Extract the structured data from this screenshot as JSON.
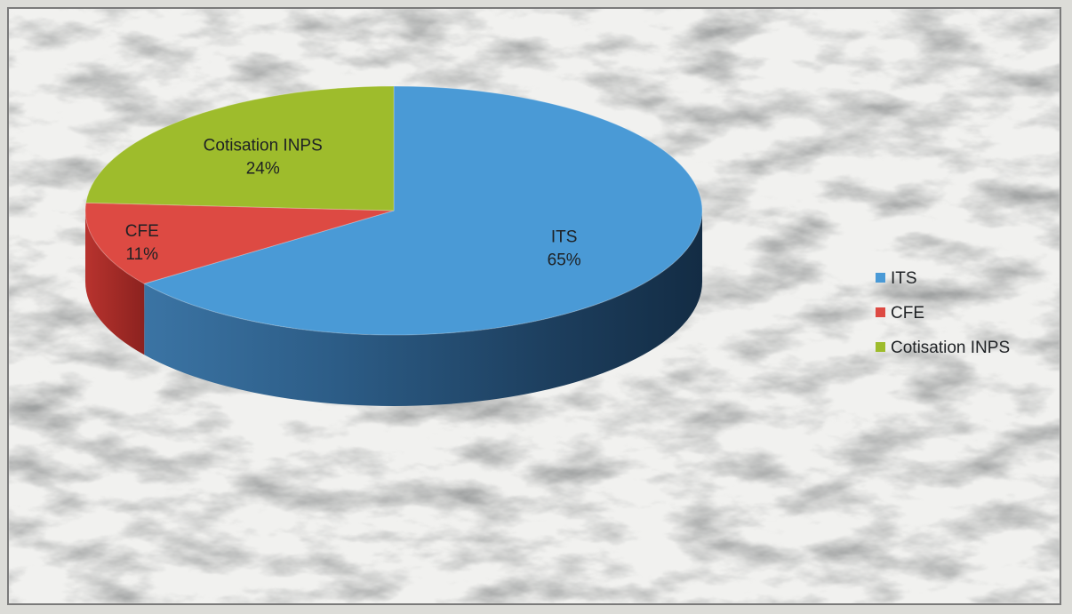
{
  "chart_data": {
    "type": "pie",
    "style": "3d",
    "title": "",
    "slices": [
      {
        "label": "ITS",
        "value": 65,
        "value_label": "65%",
        "color": "#4a9ad6"
      },
      {
        "label": "CFE",
        "value": 11,
        "value_label": "11%",
        "color": "#dd4a43"
      },
      {
        "label": "Cotisation INPS",
        "value": 24,
        "value_label": "24%",
        "color": "#9ebc2c"
      }
    ],
    "legend": {
      "position": "right"
    },
    "background": "marble"
  }
}
